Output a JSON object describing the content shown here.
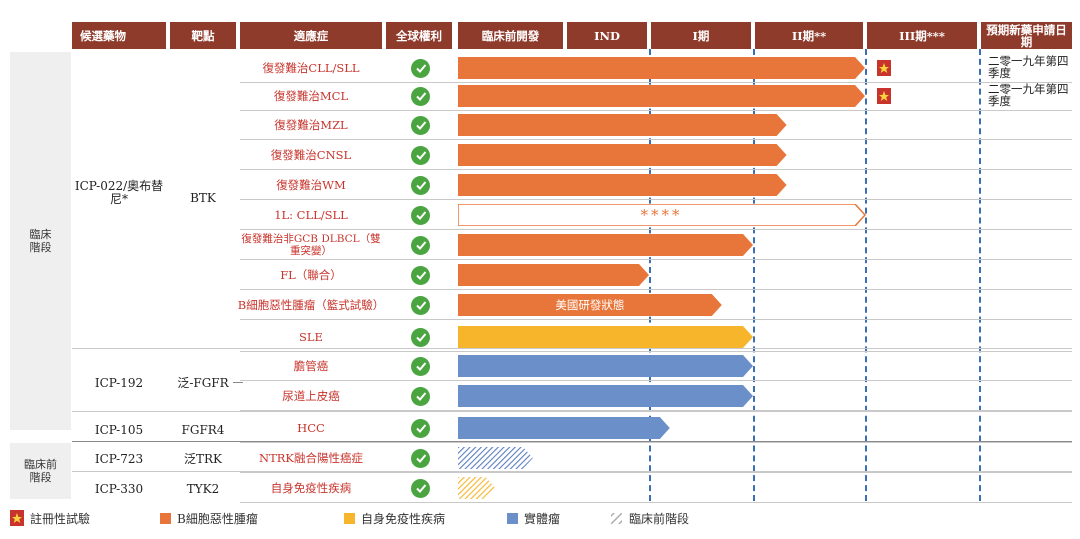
{
  "headers": {
    "drug": "候選藥物",
    "target": "靶點",
    "indication": "適應症",
    "rights": "全球權利",
    "preclinical": "臨床前開發",
    "ind": "IND",
    "phase1": "I期",
    "phase2": "II期**",
    "phase3": "III期***",
    "filing": "預期新藥申請日期"
  },
  "stages": {
    "clinical": "臨床階段",
    "preclinical": "臨床前階段"
  },
  "candidates": [
    {
      "name": "ICP-022/奧布替尼*",
      "target": "BTK"
    },
    {
      "name": "ICP-192",
      "target": "泛-FGFR"
    },
    {
      "name": "ICP-105",
      "target": "FGFR4"
    },
    {
      "name": "ICP-723",
      "target": "泛TRK"
    },
    {
      "name": "ICP-330",
      "target": "TYK2"
    }
  ],
  "rows": [
    {
      "indication": "復發難治CLL/SLL",
      "type": "bcell",
      "progress_phase": 4.0,
      "registrational": true,
      "filing": "二零一九年第四季度"
    },
    {
      "indication": "復發難治MCL",
      "type": "bcell",
      "progress_phase": 4.0,
      "registrational": true,
      "filing": "二零一九年第四季度"
    },
    {
      "indication": "復發難治MZL",
      "type": "bcell",
      "progress_phase": 3.3,
      "registrational": false,
      "filing": ""
    },
    {
      "indication": "復發難治CNSL",
      "type": "bcell",
      "progress_phase": 3.3,
      "registrational": false,
      "filing": ""
    },
    {
      "indication": "復發難治WM",
      "type": "bcell",
      "progress_phase": 3.3,
      "registrational": false,
      "filing": ""
    },
    {
      "indication": "1L: CLL/SLL",
      "type": "bcell-outline",
      "progress_phase": 4.0,
      "registrational": false,
      "filing": "",
      "label": "****"
    },
    {
      "indication": "復發難治非GCB DLBCL（雙重突變）",
      "type": "bcell",
      "progress_phase": 3.0,
      "registrational": false,
      "filing": ""
    },
    {
      "indication": "FL（聯合）",
      "type": "bcell",
      "progress_phase": 2.0,
      "registrational": false,
      "filing": ""
    },
    {
      "indication": "B細胞惡性腫瘤（籃式試驗）",
      "type": "bcell",
      "progress_phase": 2.7,
      "registrational": false,
      "filing": "",
      "label": "美國研發狀態"
    },
    {
      "indication": "SLE",
      "type": "autoimmune",
      "progress_phase": 3.0,
      "registrational": false,
      "filing": ""
    },
    {
      "indication": "膽管癌",
      "type": "solid",
      "progress_phase": 3.0,
      "registrational": false,
      "filing": ""
    },
    {
      "indication": "尿道上皮癌",
      "type": "solid",
      "progress_phase": 3.0,
      "registrational": false,
      "filing": ""
    },
    {
      "indication": "HCC",
      "type": "solid",
      "progress_phase": 2.2,
      "registrational": false,
      "filing": ""
    },
    {
      "indication": "NTRK融合陽性癌症",
      "type": "preclinical-blue",
      "progress_phase": 0.7,
      "registrational": false,
      "filing": ""
    },
    {
      "indication": "自身免疫性疾病",
      "type": "preclinical-yellow",
      "progress_phase": 0.35,
      "registrational": false,
      "filing": ""
    }
  ],
  "legend": [
    {
      "label": "註冊性試驗",
      "icon": "flag-icon"
    },
    {
      "label": "B細胞惡性腫瘤",
      "color": "#e8763a"
    },
    {
      "label": "自身免疫性疾病",
      "color": "#f7b52c"
    },
    {
      "label": "實體瘤",
      "color": "#6b8fc9"
    },
    {
      "label": "臨床前階段",
      "pattern": "hatch-gray"
    }
  ],
  "colors": {
    "header": "#8f3b2c",
    "bcell": "#e8763a",
    "autoimmune": "#f7b52c",
    "solid": "#6b8fc9",
    "check": "#4aa541",
    "indication_text": "#c8342c",
    "flag": "#c8342c"
  }
}
